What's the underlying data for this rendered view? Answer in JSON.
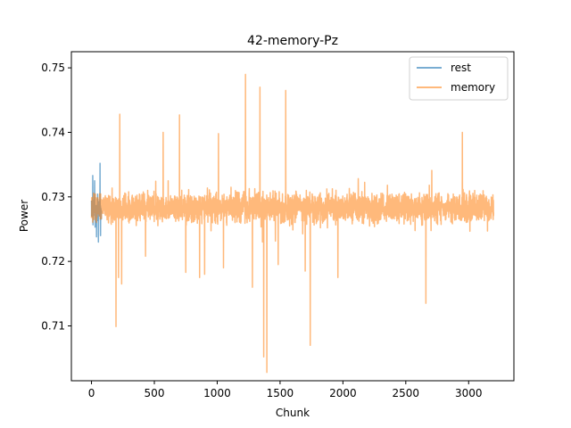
{
  "chart_data": {
    "type": "line",
    "title": "42-memory-Pz",
    "xlabel": "Chunk",
    "ylabel": "Power",
    "xlim": [
      -160,
      3360
    ],
    "ylim": [
      0.7015,
      0.7525
    ],
    "xticks": [
      0,
      500,
      1000,
      1500,
      2000,
      2500,
      3000
    ],
    "yticks": [
      0.71,
      0.72,
      0.73,
      0.74,
      0.75
    ],
    "xtick_labels": [
      "0",
      "500",
      "1000",
      "1500",
      "2000",
      "2500",
      "3000"
    ],
    "ytick_labels": [
      "0.71",
      "0.72",
      "0.73",
      "0.74",
      "0.75"
    ],
    "grid": false,
    "legend_position": "top-right",
    "series": [
      {
        "name": "rest",
        "color": "#1f77b4",
        "alpha": 0.6,
        "n_points": 80,
        "baseline": 0.7282,
        "noise": 0.0022,
        "seed": 7,
        "spikes": [
          {
            "x": 10,
            "y": 0.7333
          },
          {
            "x": 25,
            "y": 0.7325
          },
          {
            "x": 40,
            "y": 0.7238
          },
          {
            "x": 55,
            "y": 0.723
          },
          {
            "x": 68,
            "y": 0.7352
          },
          {
            "x": 72,
            "y": 0.724
          }
        ]
      },
      {
        "name": "memory",
        "color": "#ff7f0e",
        "alpha": 0.55,
        "n_points": 3200,
        "baseline": 0.7283,
        "noise": 0.0023,
        "seed": 42,
        "spikes": [
          {
            "x": 195,
            "y": 0.7099
          },
          {
            "x": 215,
            "y": 0.7175
          },
          {
            "x": 225,
            "y": 0.7428
          },
          {
            "x": 240,
            "y": 0.7165
          },
          {
            "x": 430,
            "y": 0.7208
          },
          {
            "x": 570,
            "y": 0.74
          },
          {
            "x": 610,
            "y": 0.7325
          },
          {
            "x": 700,
            "y": 0.7427
          },
          {
            "x": 750,
            "y": 0.7183
          },
          {
            "x": 860,
            "y": 0.7175
          },
          {
            "x": 900,
            "y": 0.718
          },
          {
            "x": 1010,
            "y": 0.7398
          },
          {
            "x": 1050,
            "y": 0.719
          },
          {
            "x": 1225,
            "y": 0.749
          },
          {
            "x": 1280,
            "y": 0.716
          },
          {
            "x": 1340,
            "y": 0.747
          },
          {
            "x": 1370,
            "y": 0.7052
          },
          {
            "x": 1395,
            "y": 0.7028
          },
          {
            "x": 1485,
            "y": 0.7195
          },
          {
            "x": 1545,
            "y": 0.7465
          },
          {
            "x": 1700,
            "y": 0.7185
          },
          {
            "x": 1740,
            "y": 0.707
          },
          {
            "x": 1960,
            "y": 0.7175
          },
          {
            "x": 2660,
            "y": 0.7135
          },
          {
            "x": 2950,
            "y": 0.74
          }
        ]
      }
    ]
  }
}
